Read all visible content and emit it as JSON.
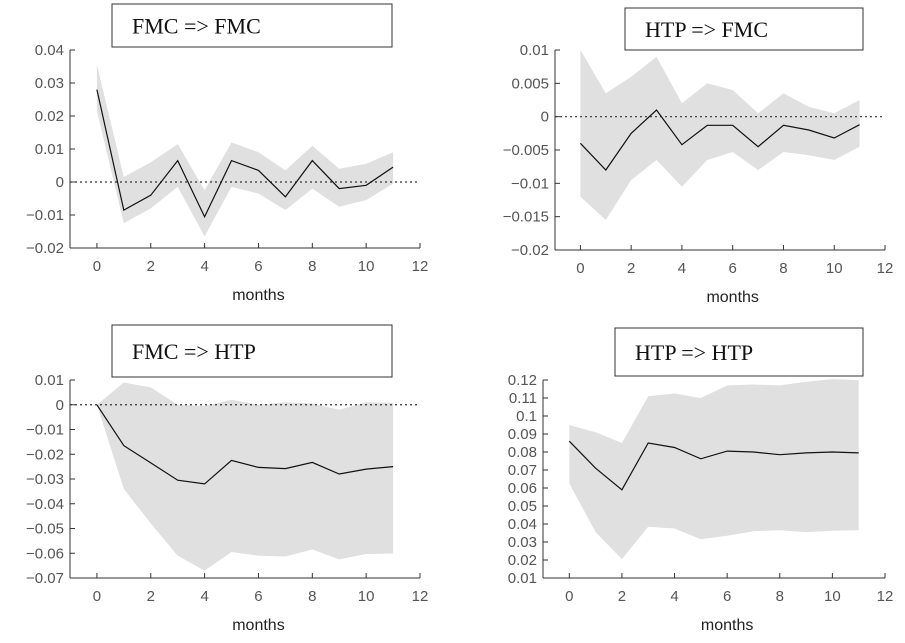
{
  "chart_data": [
    {
      "type": "area",
      "title": "FMC => FMC",
      "xlabel": "months",
      "ylabel": "",
      "xlim": [
        -1,
        12
      ],
      "ylim": [
        -0.02,
        0.04
      ],
      "xticks": [
        "0",
        "2",
        "4",
        "6",
        "8",
        "10",
        "12"
      ],
      "yticks": [
        "0.04",
        "0.03",
        "0.02",
        "0.01",
        "0",
        "−0.01",
        "−0.02"
      ],
      "x": [
        0,
        1,
        2,
        3,
        4,
        5,
        6,
        7,
        8,
        9,
        10,
        11
      ],
      "series": [
        {
          "role": "response",
          "values": [
            0.028,
            -0.0085,
            -0.004,
            0.0065,
            -0.0105,
            0.0065,
            0.0035,
            -0.0045,
            0.0065,
            -0.002,
            -0.001,
            0.0045
          ]
        },
        {
          "role": "upper",
          "values": [
            0.0355,
            0.0015,
            0.006,
            0.0115,
            -0.0025,
            0.012,
            0.009,
            0.0035,
            0.011,
            0.004,
            0.0055,
            0.009
          ]
        },
        {
          "role": "lower",
          "values": [
            0.0215,
            -0.0125,
            -0.008,
            -0.0015,
            -0.0165,
            -0.0015,
            -0.0035,
            -0.0085,
            -0.002,
            -0.0075,
            -0.0055,
            -0.0005
          ]
        }
      ],
      "zero_line": "dotted",
      "band_color": "#e0e0e0",
      "line_color": "#111111",
      "grid": false
    },
    {
      "type": "area",
      "title": "HTP => FMC",
      "xlabel": "months",
      "ylabel": "",
      "xlim": [
        -1,
        12
      ],
      "ylim": [
        -0.02,
        0.01
      ],
      "xticks": [
        "0",
        "2",
        "4",
        "6",
        "8",
        "10",
        "12"
      ],
      "yticks": [
        "0.01",
        "0.005",
        "0",
        "−0.005",
        "−0.01",
        "−0.015",
        "−0.02"
      ],
      "x": [
        0,
        1,
        2,
        3,
        4,
        5,
        6,
        7,
        8,
        9,
        10,
        11
      ],
      "series": [
        {
          "role": "response",
          "values": [
            -0.004,
            -0.008,
            -0.0025,
            0.001,
            -0.0042,
            -0.0013,
            -0.0013,
            -0.0045,
            -0.0013,
            -0.002,
            -0.0032,
            -0.0012
          ]
        },
        {
          "role": "upper",
          "values": [
            0.01,
            0.0035,
            0.006,
            0.009,
            0.002,
            0.005,
            0.004,
            0.0005,
            0.0035,
            0.0015,
            0.0005,
            0.0025
          ]
        },
        {
          "role": "lower",
          "values": [
            -0.012,
            -0.0155,
            -0.0095,
            -0.0065,
            -0.0105,
            -0.0065,
            -0.0053,
            -0.008,
            -0.0053,
            -0.0058,
            -0.0065,
            -0.0045
          ]
        }
      ],
      "zero_line": "dotted",
      "band_color": "#e0e0e0",
      "line_color": "#111111",
      "grid": false
    },
    {
      "type": "area",
      "title": "FMC => HTP",
      "xlabel": "months",
      "ylabel": "",
      "xlim": [
        -1,
        12
      ],
      "ylim": [
        -0.07,
        0.01
      ],
      "xticks": [
        "0",
        "2",
        "4",
        "6",
        "8",
        "10",
        "12"
      ],
      "yticks": [
        "0.01",
        "0",
        "−0.01",
        "−0.02",
        "−0.03",
        "−0.04",
        "−0.05",
        "−0.06",
        "−0.07"
      ],
      "x": [
        0,
        1,
        2,
        3,
        4,
        5,
        6,
        7,
        8,
        9,
        10,
        11
      ],
      "series": [
        {
          "role": "response",
          "values": [
            0,
            -0.0165,
            -0.0235,
            -0.0305,
            -0.032,
            -0.0225,
            -0.0253,
            -0.0258,
            -0.0233,
            -0.028,
            -0.026,
            -0.025
          ]
        },
        {
          "role": "upper",
          "values": [
            0,
            0.009,
            0.007,
            0,
            -0.0005,
            0.002,
            0,
            0.001,
            0.0005,
            -0.002,
            0.001,
            0.0008
          ]
        },
        {
          "role": "lower",
          "values": [
            0,
            -0.034,
            -0.048,
            -0.061,
            -0.067,
            -0.0595,
            -0.061,
            -0.0613,
            -0.0585,
            -0.0625,
            -0.0603,
            -0.0601
          ]
        }
      ],
      "zero_line": "dotted",
      "band_color": "#e0e0e0",
      "line_color": "#111111",
      "grid": false
    },
    {
      "type": "area",
      "title": "HTP => HTP",
      "xlabel": "months",
      "ylabel": "",
      "xlim": [
        -1,
        12
      ],
      "ylim": [
        0.01,
        0.12
      ],
      "xticks": [
        "0",
        "2",
        "4",
        "6",
        "8",
        "10",
        "12"
      ],
      "yticks": [
        "0.12",
        "0.11",
        "0.1",
        "0.09",
        "0.08",
        "0.07",
        "0.06",
        "0.05",
        "0.04",
        "0.03",
        "0.02",
        "0.01"
      ],
      "x": [
        0,
        1,
        2,
        3,
        4,
        5,
        6,
        7,
        8,
        9,
        10,
        11
      ],
      "series": [
        {
          "role": "response",
          "values": [
            0.086,
            0.071,
            0.059,
            0.085,
            0.0825,
            0.0762,
            0.0805,
            0.08,
            0.0785,
            0.0795,
            0.08,
            0.0795
          ]
        },
        {
          "role": "upper",
          "values": [
            0.095,
            0.091,
            0.085,
            0.111,
            0.1125,
            0.11,
            0.117,
            0.1175,
            0.117,
            0.119,
            0.1205,
            0.12
          ]
        },
        {
          "role": "lower",
          "values": [
            0.0625,
            0.0355,
            0.0205,
            0.0385,
            0.0375,
            0.0315,
            0.0335,
            0.036,
            0.0365,
            0.0355,
            0.0362,
            0.0365
          ]
        }
      ],
      "zero_line": "none",
      "band_color": "#e0e0e0",
      "line_color": "#111111",
      "grid": false
    }
  ]
}
